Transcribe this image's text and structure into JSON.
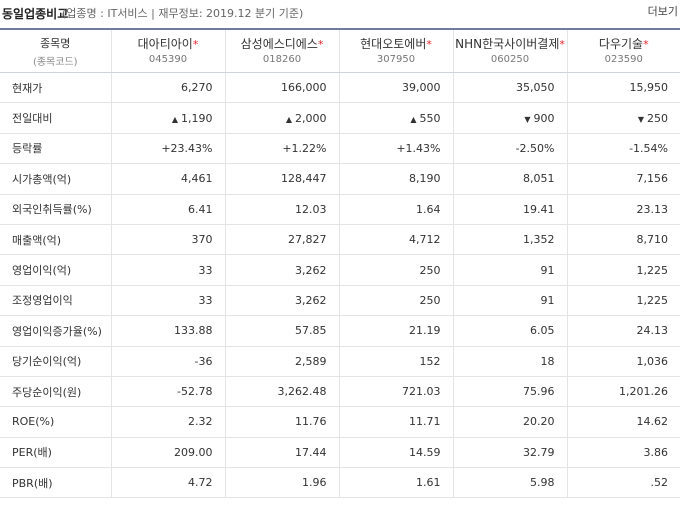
{
  "header": {
    "title": "동일업종비교",
    "meta": "(업종명 : IT서비스 | 재무정보: 2019.12 분기 기준)",
    "more": "더보기"
  },
  "table": {
    "corner_label": "종목명",
    "corner_sub": "(종목코드)",
    "companies": [
      {
        "name": "대아티아이",
        "star": "*",
        "code": "045390"
      },
      {
        "name": "삼성에스디에스",
        "star": "*",
        "code": "018260"
      },
      {
        "name": "현대오토에버",
        "star": "*",
        "code": "307950"
      },
      {
        "name": "NHN한국사이버결제",
        "star": "*",
        "code": "060250"
      },
      {
        "name": "다우기술",
        "star": "*",
        "code": "023590"
      }
    ],
    "rows": [
      {
        "label": "현재가",
        "values": [
          "6,270",
          "166,000",
          "39,000",
          "35,050",
          "15,950"
        ]
      },
      {
        "label": "전일대비",
        "values": [
          "1,190",
          "2,000",
          "550",
          "900",
          "250"
        ],
        "dir": [
          "up",
          "up",
          "up",
          "down",
          "down"
        ]
      },
      {
        "label": "등락률",
        "values": [
          "+23.43%",
          "+1.22%",
          "+1.43%",
          "-2.50%",
          "-1.54%"
        ],
        "dir": [
          "up",
          "up",
          "up",
          "down",
          "down"
        ]
      },
      {
        "label": "시가총액(억)",
        "values": [
          "4,461",
          "128,447",
          "8,190",
          "8,051",
          "7,156"
        ]
      },
      {
        "label": "외국인취득률(%)",
        "values": [
          "6.41",
          "12.03",
          "1.64",
          "19.41",
          "23.13"
        ]
      },
      {
        "label": "매출액(억)",
        "values": [
          "370",
          "27,827",
          "4,712",
          "1,352",
          "8,710"
        ]
      },
      {
        "label": "영업이익(억)",
        "values": [
          "33",
          "3,262",
          "250",
          "91",
          "1,225"
        ]
      },
      {
        "label": "조정영업이익",
        "values": [
          "33",
          "3,262",
          "250",
          "91",
          "1,225"
        ]
      },
      {
        "label": "영업이익증가율(%)",
        "values": [
          "133.88",
          "57.85",
          "21.19",
          "6.05",
          "24.13"
        ]
      },
      {
        "label": "당기순이익(억)",
        "values": [
          "-36",
          "2,589",
          "152",
          "18",
          "1,036"
        ]
      },
      {
        "label": "주당순이익(원)",
        "values": [
          "-52.78",
          "3,262.48",
          "721.03",
          "75.96",
          "1,201.26"
        ]
      },
      {
        "label": "ROE(%)",
        "values": [
          "2.32",
          "11.76",
          "11.71",
          "20.20",
          "14.62"
        ]
      },
      {
        "label": "PER(배)",
        "values": [
          "209.00",
          "17.44",
          "14.59",
          "32.79",
          "3.86"
        ]
      },
      {
        "label": "PBR(배)",
        "values": [
          "4.72",
          "1.96",
          "1.61",
          "5.98",
          ".52"
        ]
      }
    ]
  },
  "colors": {
    "up": "#e0262d",
    "down": "#1b62d6",
    "header_border": "#6f7f9b"
  },
  "icons": {
    "up": "triangle-up-icon",
    "down": "triangle-down-icon"
  }
}
